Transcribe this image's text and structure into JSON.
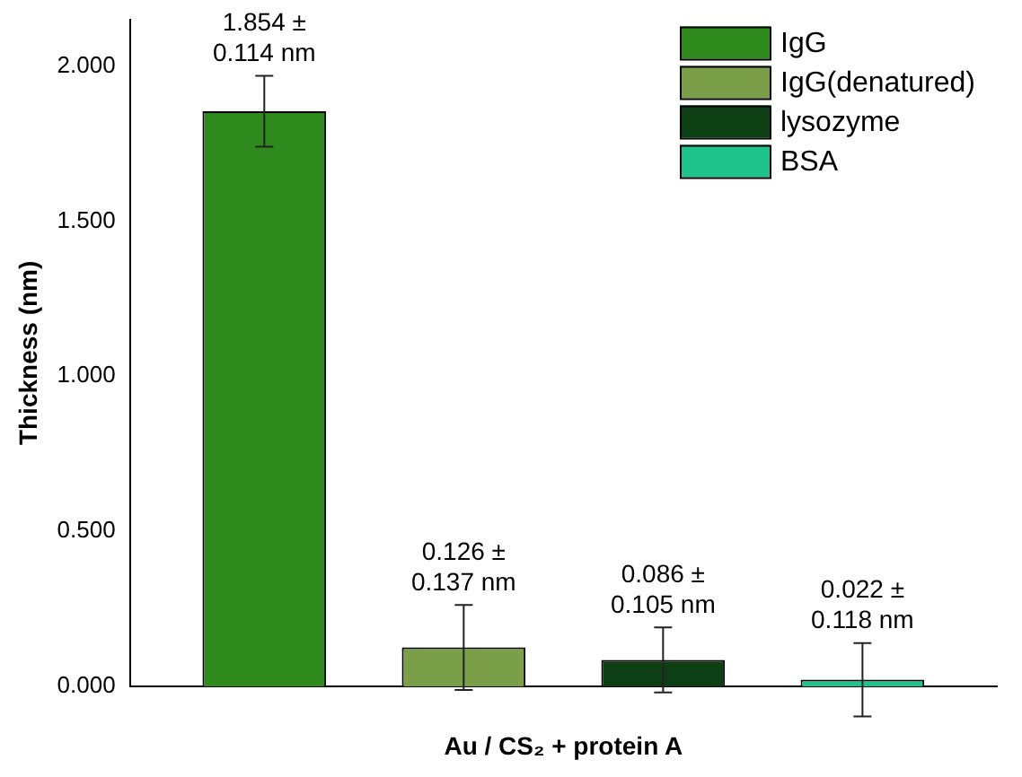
{
  "chart_data": {
    "type": "bar",
    "ylabel": "Thickness (nm)",
    "xlabel": "Au / CS₂ + protein A",
    "categories": [
      null
    ],
    "ylim": [
      0,
      2.15
    ],
    "yticks": [
      {
        "value": 0,
        "label": "0.000"
      },
      {
        "value": 0.5,
        "label": "0.500"
      },
      {
        "value": 1,
        "label": "1.000"
      },
      {
        "value": 1.5,
        "label": "1.500"
      },
      {
        "value": 2,
        "label": "2.000"
      }
    ],
    "grid": false,
    "legend": "top right",
    "series": [
      {
        "name": "IgG",
        "color": "#2e8a1c",
        "values": [
          1.854
        ],
        "errors": [
          0.114
        ],
        "value_labels": [
          "1.854 ±\n0.114 nm"
        ]
      },
      {
        "name": "IgG(denatured)",
        "color": "#7a9f48",
        "values": [
          0.126
        ],
        "errors": [
          0.137
        ],
        "value_labels": [
          "0.126 ±\n0.137 nm"
        ]
      },
      {
        "name": "lysozyme",
        "color": "#0e3f14",
        "values": [
          0.086
        ],
        "errors": [
          0.105
        ],
        "value_labels": [
          "0.086 ±\n0.105 nm"
        ]
      },
      {
        "name": "BSA",
        "color": "#1ec48c",
        "values": [
          0.022
        ],
        "errors": [
          0.118
        ],
        "value_labels": [
          "0.022 ±\n0.118 nm"
        ]
      }
    ]
  }
}
